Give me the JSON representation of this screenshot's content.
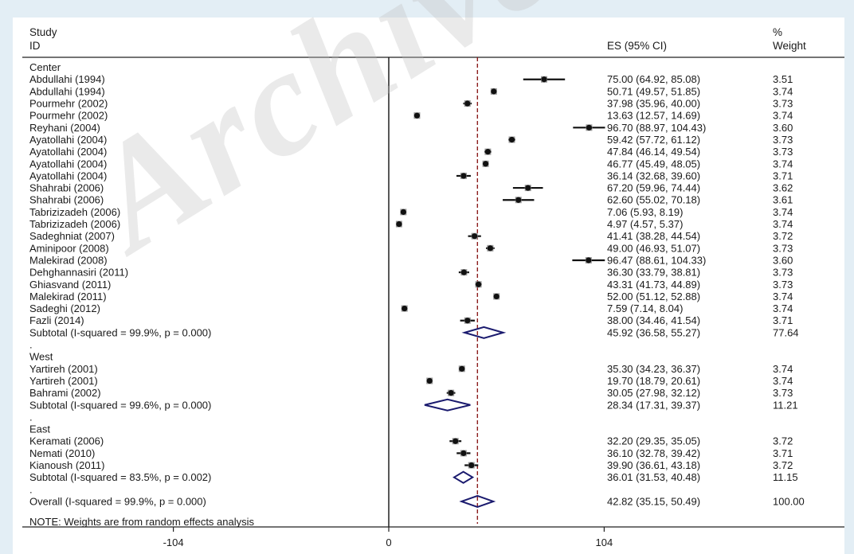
{
  "watermark": "Archive",
  "headers": {
    "study_line1": "Study",
    "study_line2": "ID",
    "es": "ES (95% CI)",
    "weight_line1": "%",
    "weight_line2": "Weight"
  },
  "note": "NOTE: Weights are from random effects analysis",
  "chart_data": {
    "type": "forest",
    "x_ticks": [
      -104,
      0,
      104
    ],
    "xlim": [
      -150,
      190
    ],
    "reference_line": 0,
    "overall_line": 42.82,
    "rows": [
      {
        "kind": "group",
        "label": "Center"
      },
      {
        "kind": "study",
        "label": "Abdullahi (1994)",
        "es": 75.0,
        "lo": 64.92,
        "hi": 85.08,
        "ci_text": "75.00 (64.92, 85.08)",
        "weight": "3.51"
      },
      {
        "kind": "study",
        "label": "Abdullahi (1994)",
        "es": 50.71,
        "lo": 49.57,
        "hi": 51.85,
        "ci_text": "50.71 (49.57, 51.85)",
        "weight": "3.74"
      },
      {
        "kind": "study",
        "label": "Pourmehr (2002)",
        "es": 37.98,
        "lo": 35.96,
        "hi": 40.0,
        "ci_text": "37.98 (35.96, 40.00)",
        "weight": "3.73"
      },
      {
        "kind": "study",
        "label": "Pourmehr (2002)",
        "es": 13.63,
        "lo": 12.57,
        "hi": 14.69,
        "ci_text": "13.63 (12.57, 14.69)",
        "weight": "3.74"
      },
      {
        "kind": "study",
        "label": "Reyhani (2004)",
        "es": 96.7,
        "lo": 88.97,
        "hi": 104.43,
        "ci_text": "96.70 (88.97, 104.43)",
        "weight": "3.60"
      },
      {
        "kind": "study",
        "label": "Ayatollahi (2004)",
        "es": 59.42,
        "lo": 57.72,
        "hi": 61.12,
        "ci_text": "59.42 (57.72, 61.12)",
        "weight": "3.73"
      },
      {
        "kind": "study",
        "label": "Ayatollahi (2004)",
        "es": 47.84,
        "lo": 46.14,
        "hi": 49.54,
        "ci_text": "47.84 (46.14, 49.54)",
        "weight": "3.73"
      },
      {
        "kind": "study",
        "label": "Ayatollahi (2004)",
        "es": 46.77,
        "lo": 45.49,
        "hi": 48.05,
        "ci_text": "46.77 (45.49, 48.05)",
        "weight": "3.74"
      },
      {
        "kind": "study",
        "label": "Ayatollahi (2004)",
        "es": 36.14,
        "lo": 32.68,
        "hi": 39.6,
        "ci_text": "36.14 (32.68, 39.60)",
        "weight": "3.71"
      },
      {
        "kind": "study",
        "label": "Shahrabi (2006)",
        "es": 67.2,
        "lo": 59.96,
        "hi": 74.44,
        "ci_text": "67.20 (59.96, 74.44)",
        "weight": "3.62"
      },
      {
        "kind": "study",
        "label": "Shahrabi (2006)",
        "es": 62.6,
        "lo": 55.02,
        "hi": 70.18,
        "ci_text": "62.60 (55.02, 70.18)",
        "weight": "3.61"
      },
      {
        "kind": "study",
        "label": "Tabrizizadeh (2006)",
        "es": 7.06,
        "lo": 5.93,
        "hi": 8.19,
        "ci_text": "7.06 (5.93, 8.19)",
        "weight": "3.74"
      },
      {
        "kind": "study",
        "label": "Tabrizizadeh (2006)",
        "es": 4.97,
        "lo": 4.57,
        "hi": 5.37,
        "ci_text": "4.97 (4.57, 5.37)",
        "weight": "3.74"
      },
      {
        "kind": "study",
        "label": "Sadeghniat (2007)",
        "es": 41.41,
        "lo": 38.28,
        "hi": 44.54,
        "ci_text": "41.41 (38.28, 44.54)",
        "weight": "3.72"
      },
      {
        "kind": "study",
        "label": "Aminipoor (2008)",
        "es": 49.0,
        "lo": 46.93,
        "hi": 51.07,
        "ci_text": "49.00 (46.93, 51.07)",
        "weight": "3.73"
      },
      {
        "kind": "study",
        "label": "Malekirad (2008)",
        "es": 96.47,
        "lo": 88.61,
        "hi": 104.33,
        "ci_text": "96.47 (88.61, 104.33)",
        "weight": "3.60"
      },
      {
        "kind": "study",
        "label": "Dehghannasiri (2011)",
        "es": 36.3,
        "lo": 33.79,
        "hi": 38.81,
        "ci_text": "36.30 (33.79, 38.81)",
        "weight": "3.73"
      },
      {
        "kind": "study",
        "label": "Ghiasvand (2011)",
        "es": 43.31,
        "lo": 41.73,
        "hi": 44.89,
        "ci_text": "43.31 (41.73, 44.89)",
        "weight": "3.73"
      },
      {
        "kind": "study",
        "label": "Malekirad (2011)",
        "es": 52.0,
        "lo": 51.12,
        "hi": 52.88,
        "ci_text": "52.00 (51.12, 52.88)",
        "weight": "3.74"
      },
      {
        "kind": "study",
        "label": "Sadeghi (2012)",
        "es": 7.59,
        "lo": 7.14,
        "hi": 8.04,
        "ci_text": "7.59 (7.14, 8.04)",
        "weight": "3.74"
      },
      {
        "kind": "study",
        "label": "Fazli (2014)",
        "es": 38.0,
        "lo": 34.46,
        "hi": 41.54,
        "ci_text": "38.00 (34.46, 41.54)",
        "weight": "3.71"
      },
      {
        "kind": "subtotal",
        "label": "Subtotal  (I-squared = 99.9%, p = 0.000)",
        "es": 45.92,
        "lo": 36.58,
        "hi": 55.27,
        "ci_text": "45.92 (36.58, 55.27)",
        "weight": "77.64"
      },
      {
        "kind": "dot",
        "label": "."
      },
      {
        "kind": "group",
        "label": "West"
      },
      {
        "kind": "study",
        "label": "Yartireh (2001)",
        "es": 35.3,
        "lo": 34.23,
        "hi": 36.37,
        "ci_text": "35.30 (34.23, 36.37)",
        "weight": "3.74"
      },
      {
        "kind": "study",
        "label": "Yartireh (2001)",
        "es": 19.7,
        "lo": 18.79,
        "hi": 20.61,
        "ci_text": "19.70 (18.79, 20.61)",
        "weight": "3.74"
      },
      {
        "kind": "study",
        "label": "Bahrami (2002)",
        "es": 30.05,
        "lo": 27.98,
        "hi": 32.12,
        "ci_text": "30.05 (27.98, 32.12)",
        "weight": "3.73"
      },
      {
        "kind": "subtotal",
        "label": "Subtotal  (I-squared = 99.6%, p = 0.000)",
        "es": 28.34,
        "lo": 17.31,
        "hi": 39.37,
        "ci_text": "28.34 (17.31, 39.37)",
        "weight": "11.21"
      },
      {
        "kind": "dot",
        "label": "."
      },
      {
        "kind": "group",
        "label": "East"
      },
      {
        "kind": "study",
        "label": "Keramati (2006)",
        "es": 32.2,
        "lo": 29.35,
        "hi": 35.05,
        "ci_text": "32.20 (29.35, 35.05)",
        "weight": "3.72"
      },
      {
        "kind": "study",
        "label": "Nemati (2010)",
        "es": 36.1,
        "lo": 32.78,
        "hi": 39.42,
        "ci_text": "36.10 (32.78, 39.42)",
        "weight": "3.71"
      },
      {
        "kind": "study",
        "label": "Kianoush (2011)",
        "es": 39.9,
        "lo": 36.61,
        "hi": 43.18,
        "ci_text": "39.90 (36.61, 43.18)",
        "weight": "3.72"
      },
      {
        "kind": "subtotal",
        "label": "Subtotal  (I-squared = 83.5%, p = 0.002)",
        "es": 36.01,
        "lo": 31.53,
        "hi": 40.48,
        "ci_text": "36.01 (31.53, 40.48)",
        "weight": "11.15"
      },
      {
        "kind": "dot",
        "label": "."
      },
      {
        "kind": "overall",
        "label": "Overall  (I-squared = 99.9%, p = 0.000)",
        "es": 42.82,
        "lo": 35.15,
        "hi": 50.49,
        "ci_text": "42.82 (35.15, 50.49)",
        "weight": "100.00"
      }
    ],
    "colors": {
      "marker": "#111111",
      "box": "#9a9a9a",
      "diamond": "#1a1a6e",
      "overall_line": "#8b1c1c"
    }
  }
}
